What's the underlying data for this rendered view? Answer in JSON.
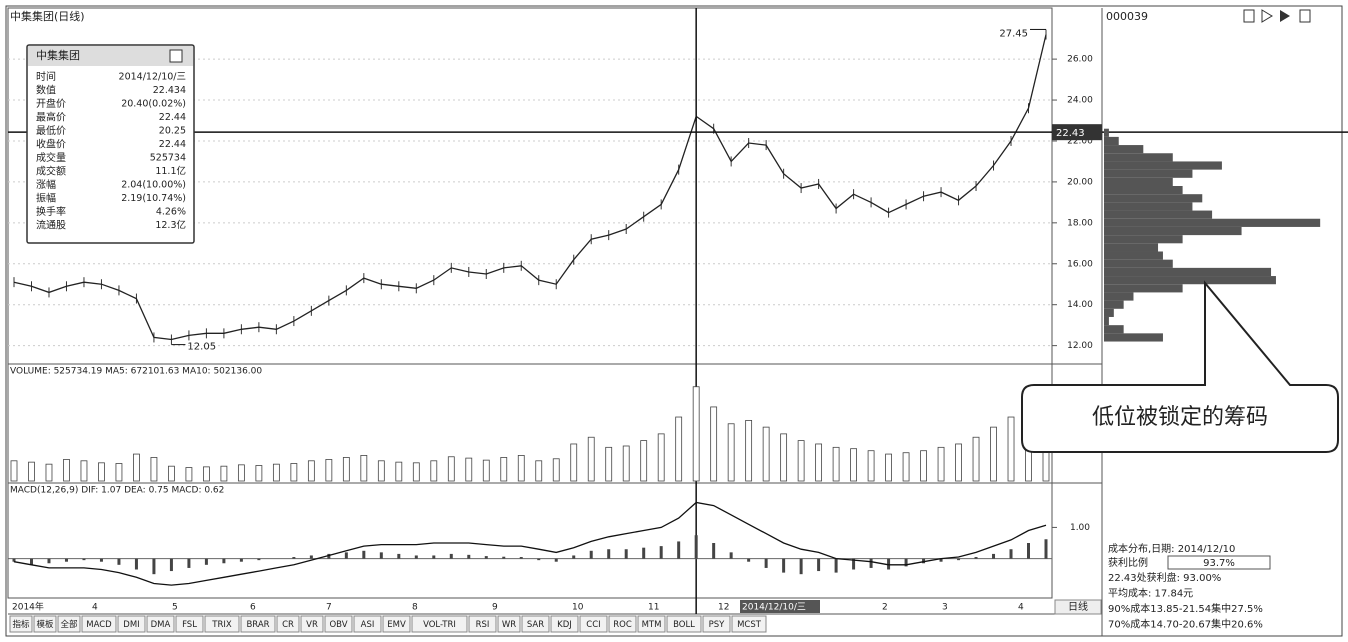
{
  "header": {
    "title": "中集集团(日线)",
    "code": "000039"
  },
  "info_panel": {
    "title": "中集集团",
    "rows": [
      [
        "时间",
        "2014/12/10/三"
      ],
      [
        "数值",
        "22.434"
      ],
      [
        "开盘价",
        "20.40(0.02%)"
      ],
      [
        "最高价",
        "22.44"
      ],
      [
        "最低价",
        "20.25"
      ],
      [
        "收盘价",
        "22.44"
      ],
      [
        "成交量",
        "525734"
      ],
      [
        "成交额",
        "11.1亿"
      ],
      [
        "涨幅",
        "2.04(10.00%)"
      ],
      [
        "振幅",
        "2.19(10.74%)"
      ],
      [
        "换手率",
        "4.26%"
      ],
      [
        "流通股",
        "12.3亿"
      ]
    ]
  },
  "price": {
    "ylim": [
      11.2,
      28.4
    ],
    "yticks": [
      {
        "value": 12,
        "label": "12.00"
      },
      {
        "value": 14,
        "label": "14.00"
      },
      {
        "value": 16,
        "label": "16.00"
      },
      {
        "value": 18,
        "label": "18.00"
      },
      {
        "value": 20,
        "label": "20.00"
      },
      {
        "value": 22,
        "label": "22.00"
      },
      {
        "value": 24,
        "label": "24.00"
      },
      {
        "value": 26,
        "label": "26.00"
      }
    ],
    "values": [
      15.1,
      14.9,
      14.6,
      14.9,
      15.1,
      15.0,
      14.7,
      14.3,
      12.4,
      12.3,
      12.5,
      12.6,
      12.6,
      12.8,
      12.9,
      12.8,
      13.2,
      13.7,
      14.2,
      14.7,
      15.3,
      15.0,
      14.9,
      14.8,
      15.2,
      15.8,
      15.6,
      15.5,
      15.8,
      15.9,
      15.2,
      15.0,
      16.2,
      17.2,
      17.4,
      17.7,
      18.3,
      18.9,
      20.6,
      23.2,
      22.6,
      21.0,
      21.9,
      21.8,
      20.4,
      19.7,
      19.9,
      18.7,
      19.4,
      19.0,
      18.5,
      18.9,
      19.3,
      19.5,
      19.1,
      19.8,
      20.8,
      22.0,
      23.6,
      27.2
    ],
    "low_label": {
      "value": 12.05,
      "label": "12.05"
    },
    "high_label": {
      "value": 27.45,
      "label": "27.45"
    },
    "current": {
      "value": 22.43,
      "label": "22.43"
    }
  },
  "volume": {
    "label": "VOLUME: 525734.19  MA5: 672101.63  MA10: 502136.00",
    "ylim": [
      0,
      150
    ],
    "values": [
      30,
      28,
      25,
      32,
      30,
      27,
      26,
      40,
      35,
      22,
      20,
      21,
      22,
      24,
      23,
      25,
      26,
      30,
      32,
      35,
      38,
      30,
      28,
      27,
      30,
      36,
      34,
      31,
      35,
      38,
      30,
      33,
      55,
      65,
      50,
      52,
      60,
      70,
      95,
      140,
      110,
      85,
      90,
      80,
      70,
      60,
      55,
      50,
      48,
      45,
      40,
      42,
      45,
      50,
      55,
      65,
      80,
      95,
      110,
      120
    ]
  },
  "macd": {
    "label": "MACD(12,26,9) DIF: 1.07  DEA: 0.75  MACD: 0.62",
    "ylim": [
      -1.2,
      2.2
    ],
    "yticks": [
      {
        "value": 1,
        "label": "1.00"
      }
    ],
    "values": [
      -0.1,
      -0.2,
      -0.15,
      -0.1,
      -0.05,
      -0.1,
      -0.2,
      -0.35,
      -0.5,
      -0.4,
      -0.3,
      -0.2,
      -0.15,
      -0.1,
      -0.05,
      0.0,
      0.05,
      0.1,
      0.15,
      0.2,
      0.25,
      0.2,
      0.15,
      0.1,
      0.1,
      0.15,
      0.12,
      0.08,
      0.06,
      0.05,
      -0.05,
      -0.1,
      0.1,
      0.25,
      0.3,
      0.3,
      0.35,
      0.4,
      0.55,
      0.75,
      0.5,
      0.2,
      -0.1,
      -0.3,
      -0.45,
      -0.5,
      -0.4,
      -0.45,
      -0.35,
      -0.3,
      -0.35,
      -0.25,
      -0.15,
      -0.1,
      -0.05,
      0.05,
      0.15,
      0.3,
      0.5,
      0.62
    ],
    "dif": [
      -0.1,
      -0.2,
      -0.3,
      -0.3,
      -0.3,
      -0.35,
      -0.45,
      -0.6,
      -0.8,
      -0.85,
      -0.8,
      -0.7,
      -0.6,
      -0.5,
      -0.4,
      -0.3,
      -0.2,
      -0.05,
      0.1,
      0.25,
      0.4,
      0.45,
      0.45,
      0.45,
      0.5,
      0.5,
      0.5,
      0.45,
      0.4,
      0.4,
      0.3,
      0.2,
      0.35,
      0.55,
      0.7,
      0.8,
      0.9,
      1.0,
      1.3,
      1.8,
      1.7,
      1.4,
      1.1,
      0.8,
      0.5,
      0.3,
      0.2,
      0.0,
      -0.05,
      -0.1,
      -0.2,
      -0.2,
      -0.1,
      0.0,
      0.05,
      0.2,
      0.4,
      0.6,
      0.9,
      1.07
    ]
  },
  "x_labels": [
    "2014年",
    "4",
    "5",
    "6",
    "7",
    "8",
    "9",
    "10",
    "11",
    "12",
    "2014/12/10/三",
    "2",
    "3",
    "4"
  ],
  "chips": {
    "xlim": [
      0,
      230
    ],
    "prices": [
      12.4,
      12.8,
      13.2,
      13.6,
      14.0,
      14.4,
      14.8,
      15.2,
      15.6,
      16.0,
      16.4,
      16.8,
      17.2,
      17.6,
      18.0,
      18.4,
      18.8,
      19.2,
      19.6,
      20.0,
      20.4,
      20.8,
      21.2,
      21.6,
      22.0,
      22.4
    ],
    "volumes": [
      60,
      20,
      5,
      10,
      20,
      30,
      80,
      175,
      170,
      70,
      60,
      55,
      80,
      140,
      220,
      110,
      90,
      100,
      80,
      70,
      90,
      120,
      70,
      40,
      15,
      5
    ]
  },
  "callout": "低位被锁定的筹码",
  "period_button": "日线",
  "tabs": [
    "指标",
    "模板",
    "全部",
    "MACD",
    "DMI",
    "DMA",
    "FSL",
    "TRIX",
    "BRAR",
    "CR",
    "VR",
    "OBV",
    "ASI",
    "EMV",
    "VOL-TRI",
    "RSI",
    "WR",
    "SAR",
    "KDJ",
    "CCI",
    "ROC",
    "MTM",
    "BOLL",
    "PSY",
    "MCST"
  ],
  "cost_panel": {
    "title": "成本分布,日期: 2014/12/10",
    "profit_label": "获利比例",
    "profit_value": "93.7%",
    "lines": [
      "22.43处获利盘: 93.00%",
      "平均成本: 17.84元",
      "90%成本13.85-21.54集中27.5%",
      "70%成本14.70-20.67集中20.6%"
    ]
  }
}
